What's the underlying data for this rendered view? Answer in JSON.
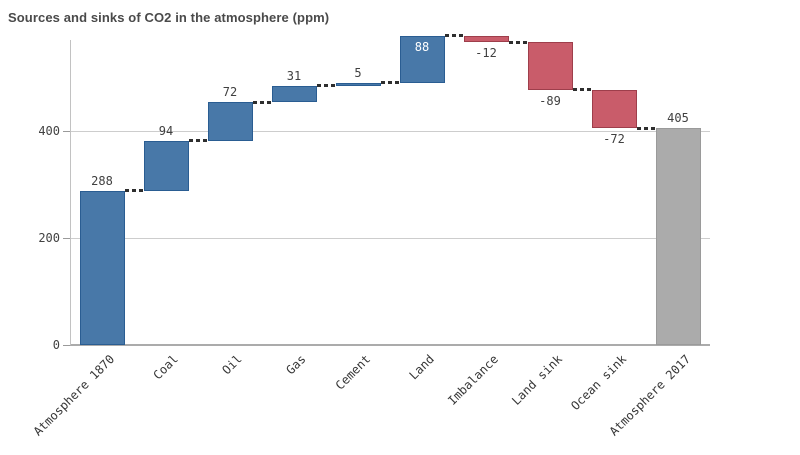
{
  "title": "Sources and sinks of CO2 in the atmosphere (ppm)",
  "chart_data": {
    "type": "bar",
    "subtype": "waterfall",
    "title": "Sources and sinks of CO2 in the atmosphere (ppm)",
    "xlabel": "",
    "ylabel": "",
    "ylim": [
      0,
      580
    ],
    "yticks": [
      0,
      200,
      400
    ],
    "grid": true,
    "legend": false,
    "categories": [
      "Atmosphere 1870",
      "Coal",
      "Oil",
      "Gas",
      "Cement",
      "Land",
      "Imbalance",
      "Land sink",
      "Ocean sink",
      "Atmosphere 2017"
    ],
    "bars": [
      {
        "label": "Atmosphere 1870",
        "value": 288,
        "kind": "increase"
      },
      {
        "label": "Coal",
        "value": 94,
        "kind": "increase"
      },
      {
        "label": "Oil",
        "value": 72,
        "kind": "increase"
      },
      {
        "label": "Gas",
        "value": 31,
        "kind": "increase"
      },
      {
        "label": "Cement",
        "value": 5,
        "kind": "increase"
      },
      {
        "label": "Land",
        "value": 88,
        "kind": "increase"
      },
      {
        "label": "Imbalance",
        "value": -12,
        "kind": "decrease"
      },
      {
        "label": "Land sink",
        "value": -89,
        "kind": "decrease"
      },
      {
        "label": "Ocean sink",
        "value": -72,
        "kind": "decrease"
      },
      {
        "label": "Atmosphere 2017",
        "value": 405,
        "kind": "total"
      }
    ],
    "cumulative_levels": [
      288,
      382,
      454,
      485,
      490,
      578,
      566,
      477,
      405,
      405
    ],
    "colors": {
      "increase_fill": "#4878a8",
      "increase_border": "#2a5d92",
      "decrease_fill": "#c95c6a",
      "decrease_border": "#9e3e4b",
      "total_fill": "#ababab",
      "total_border": "#9a9a9a",
      "connector": "#2e2e2e",
      "value_label": "#404040",
      "value_label_inside": "#ffffff",
      "grid": "#cdcdcd",
      "axis": "#ababab"
    }
  }
}
